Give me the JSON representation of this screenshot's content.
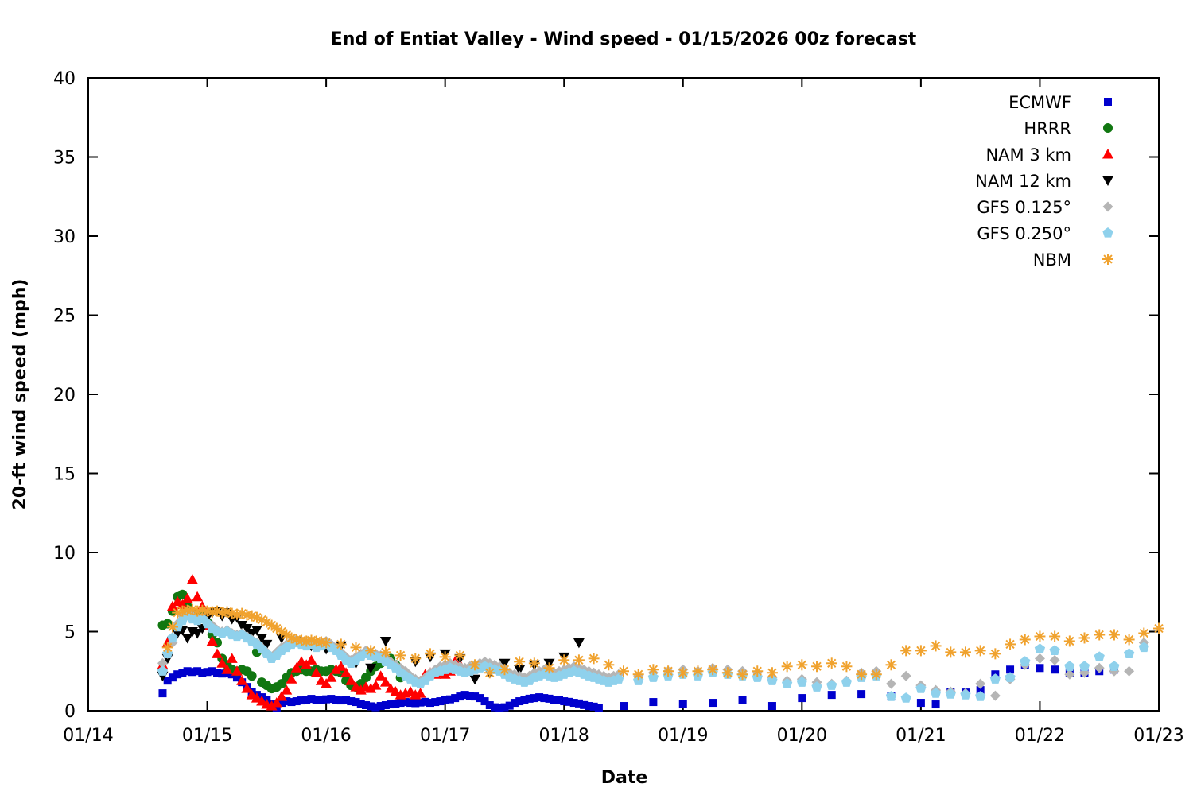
{
  "title": "End of Entiat Valley - Wind speed - 01/15/2026 00z forecast",
  "chart_data": {
    "type": "scatter",
    "title": "End of Entiat Valley - Wind speed - 01/15/2026 00z forecast",
    "xlabel": "Date",
    "ylabel": "20-ft wind speed (mph)",
    "x_tick_labels": [
      "01/14",
      "01/15",
      "01/16",
      "01/17",
      "01/18",
      "01/19",
      "01/20",
      "01/21",
      "01/22",
      "01/23"
    ],
    "x_range_days": [
      0,
      9
    ],
    "x_unit": "days after 01/14 00z",
    "y_ticks": [
      0,
      5,
      10,
      15,
      20,
      25,
      30,
      35,
      40
    ],
    "ylim": [
      0,
      40
    ],
    "grid": false,
    "legend_position": "top-right-inside",
    "background": "#ffffff",
    "series": [
      {
        "label": "ECMWF",
        "marker": "square",
        "color": "#0000cd",
        "runs": [
          {
            "t0": 0.625,
            "dt": 0.04167,
            "v": [
              1.1,
              1.9,
              2.1,
              2.3,
              2.4,
              2.5,
              2.45,
              2.5,
              2.4,
              2.45,
              2.5,
              2.4,
              2.35,
              2.4,
              2.3,
              2.1,
              1.8,
              1.5,
              1.2,
              1.0,
              0.85,
              0.7,
              0.4,
              0.2,
              0.5,
              0.6,
              0.55,
              0.6,
              0.65,
              0.7,
              0.75,
              0.7,
              0.68,
              0.72,
              0.75,
              0.7,
              0.65,
              0.7,
              0.6,
              0.55,
              0.45,
              0.35,
              0.28,
              0.22,
              0.3,
              0.35,
              0.4,
              0.45,
              0.5,
              0.55,
              0.5,
              0.48,
              0.52,
              0.56,
              0.5,
              0.55,
              0.6,
              0.66,
              0.72,
              0.8,
              0.9,
              1.0,
              0.95,
              0.9,
              0.8,
              0.6,
              0.35,
              0.22,
              0.18,
              0.22,
              0.32,
              0.5,
              0.6,
              0.7,
              0.76,
              0.8,
              0.85,
              0.8,
              0.76,
              0.7,
              0.66,
              0.6,
              0.56,
              0.5,
              0.46,
              0.36,
              0.3,
              0.26,
              0.2
            ]
          },
          {
            "t0": 4.5,
            "dt": 0.25,
            "v": [
              0.3,
              0.55,
              0.45,
              0.5,
              0.7,
              0.3,
              0.8,
              1.0,
              1.05,
              0.9,
              0.5
            ]
          },
          {
            "t0": 7.125,
            "dt": 0.125,
            "v": [
              0.4,
              1.2,
              1.15,
              1.3,
              2.3,
              2.6,
              2.9,
              2.7,
              2.6,
              2.4,
              2.4,
              2.5,
              2.6
            ]
          }
        ]
      },
      {
        "label": "HRRR",
        "marker": "circle",
        "color": "#117711",
        "runs": [
          {
            "t0": 0.625,
            "dt": 0.04167,
            "v": [
              5.4,
              5.5,
              6.3,
              7.2,
              7.35,
              6.6,
              6.2,
              5.8,
              6.3,
              5.6,
              4.8,
              4.3,
              3.3,
              2.9,
              2.6,
              2.5,
              2.6,
              2.5,
              2.2,
              3.7,
              1.8,
              1.6,
              1.4,
              1.5,
              1.7,
              2.1,
              2.4,
              2.5,
              2.6,
              2.5,
              2.5,
              2.6,
              2.5,
              2.5,
              2.6,
              2.5,
              2.4,
              1.9,
              1.6,
              1.5,
              1.7,
              2.1,
              2.5,
              2.8,
              3.0,
              3.2,
              3.3,
              2.9,
              2.1
            ]
          }
        ]
      },
      {
        "label": "NAM 3 km",
        "marker": "triangle-up",
        "color": "#ff0000",
        "runs": [
          {
            "t0": 0.625,
            "dt": 0.04167,
            "v": [
              2.9,
              4.3,
              6.6,
              6.9,
              6.7,
              7.1,
              8.3,
              7.2,
              6.6,
              5.4,
              4.4,
              3.6,
              3.0,
              2.6,
              3.3,
              2.5,
              1.9,
              1.4,
              1.0,
              0.8,
              0.6,
              0.4,
              0.3,
              0.5,
              0.9,
              1.3,
              2.0,
              2.7,
              3.1,
              2.9,
              3.2,
              2.4,
              1.9,
              1.7,
              2.1,
              2.6,
              2.8,
              2.4,
              1.9,
              1.5,
              1.3,
              1.5,
              1.4,
              1.6,
              2.2,
              1.8,
              1.4,
              1.2,
              1.0,
              1.1,
              1.2,
              1.0,
              1.1,
              2.3,
              2.4,
              2.3,
              2.4,
              2.3,
              2.5,
              3.1,
              2.9
            ]
          }
        ]
      },
      {
        "label": "NAM 12 km",
        "marker": "triangle-down",
        "color": "#000000",
        "runs": [
          {
            "t0": 0.625,
            "dt": 0.04167,
            "v": [
              2.2,
              3.3,
              4.4,
              4.9,
              5.1,
              4.6,
              5.0,
              4.9,
              5.2,
              5.9,
              6.2,
              6.3,
              6.0,
              6.2,
              5.8,
              5.9,
              5.4,
              5.2,
              4.9,
              5.1,
              4.6,
              4.2
            ]
          },
          {
            "t0": 1.625,
            "dt": 0.125,
            "v": [
              4.6,
              4.4,
              4.1,
              3.9,
              4.1,
              3.0,
              2.7,
              4.4,
              2.5,
              3.1,
              3.4,
              3.6,
              3.3,
              2.0,
              2.4,
              3.0,
              2.6,
              2.9,
              3.0,
              3.4,
              4.3
            ]
          }
        ]
      },
      {
        "label": "GFS 0.125°",
        "marker": "diamond",
        "color": "#b5b5b5",
        "runs": [
          {
            "t0": 0.625,
            "dt": 0.04167,
            "v": [
              3.0,
              3.6,
              4.3,
              5.5,
              6.0,
              6.2,
              6.0,
              5.8,
              5.9,
              5.6,
              5.4,
              5.1,
              5.0,
              5.1,
              4.9,
              4.8,
              4.9,
              4.7,
              4.5,
              4.3,
              4.0,
              3.7,
              3.4,
              3.7,
              4.0,
              4.2,
              4.4,
              4.5,
              4.4,
              4.3,
              4.4,
              4.2,
              4.3,
              4.4,
              4.2,
              4.0,
              3.7,
              3.4,
              3.2,
              3.4,
              3.6,
              3.8,
              3.7,
              3.6,
              3.5,
              3.3,
              3.1,
              2.9,
              2.7,
              2.5,
              2.2,
              2.0,
              1.9,
              2.1,
              2.4,
              2.6,
              2.8,
              2.9,
              3.0,
              2.9,
              2.8,
              2.7,
              2.8,
              2.9,
              3.0,
              3.1,
              3.0,
              2.9,
              2.8,
              2.6,
              2.4,
              2.3,
              2.2,
              2.1,
              2.2,
              2.4,
              2.5,
              2.6,
              2.5,
              2.4,
              2.5,
              2.6,
              2.7,
              2.8,
              2.7,
              2.6,
              2.5,
              2.4,
              2.3,
              2.2,
              2.1,
              2.2,
              2.3
            ]
          },
          {
            "t0": 4.625,
            "dt": 0.125,
            "v": [
              2.2,
              2.4,
              2.5,
              2.6,
              2.5,
              2.7,
              2.6,
              2.5,
              2.4,
              2.1,
              1.9,
              2.0,
              1.8,
              1.7,
              1.9,
              2.4,
              2.5,
              1.7,
              2.2,
              1.6,
              1.3,
              1.2,
              1.1,
              1.7,
              0.95,
              2.0,
              2.9,
              3.3,
              3.2,
              2.3,
              2.4,
              2.7,
              2.5,
              2.5,
              4.3
            ]
          }
        ]
      },
      {
        "label": "GFS 0.250°",
        "marker": "pentagon",
        "color": "#8fd1ec",
        "runs": [
          {
            "t0": 0.625,
            "dt": 0.04167,
            "v": [
              2.5,
              3.6,
              4.6,
              5.3,
              5.7,
              6.0,
              5.8,
              5.7,
              5.8,
              5.5,
              5.2,
              5.0,
              4.9,
              5.0,
              4.8,
              4.7,
              4.8,
              4.6,
              4.4,
              4.2,
              3.9,
              3.6,
              3.3,
              3.5,
              3.8,
              4.0,
              4.2,
              4.3,
              4.2,
              4.1,
              4.2,
              4.0,
              4.1,
              4.2,
              4.0,
              3.8,
              3.5,
              3.2,
              3.0,
              3.2,
              3.4,
              3.6,
              3.5,
              3.4,
              3.3,
              3.1,
              2.9,
              2.7,
              2.4,
              2.2,
              2.0,
              1.8,
              1.7,
              1.9,
              2.2,
              2.4,
              2.5,
              2.6,
              2.7,
              2.6,
              2.5,
              2.4,
              2.5,
              2.6,
              2.7,
              2.8,
              2.7,
              2.6,
              2.5,
              2.3,
              2.1,
              2.0,
              1.9,
              1.8,
              1.9,
              2.1,
              2.2,
              2.3,
              2.2,
              2.1,
              2.2,
              2.3,
              2.4,
              2.5,
              2.4,
              2.3,
              2.2,
              2.1,
              2.0,
              1.9,
              1.8,
              1.9,
              2.0
            ]
          },
          {
            "t0": 4.625,
            "dt": 0.125,
            "v": [
              1.9,
              2.1,
              2.2,
              2.3,
              2.2,
              2.4,
              2.3,
              2.2,
              2.1,
              1.9,
              1.7,
              1.8,
              1.5,
              1.6,
              1.8,
              2.1,
              2.2,
              0.9,
              0.8,
              1.4,
              1.1,
              1.05,
              1.0,
              0.9,
              2.0,
              2.1,
              3.1,
              3.9,
              3.8,
              2.8,
              2.8,
              3.4,
              2.8,
              3.6,
              4.0
            ]
          }
        ]
      },
      {
        "label": "NBM",
        "marker": "asterisk",
        "color": "#f0a22e",
        "runs": [
          {
            "t0": 0.667,
            "dt": 0.04167,
            "v": [
              4.0,
              5.3,
              6.2,
              6.3,
              6.35,
              6.4,
              6.3,
              6.35,
              6.3,
              6.25,
              6.3,
              6.2,
              6.25,
              6.15,
              6.1,
              6.15,
              6.05,
              6.0,
              5.9,
              5.75,
              5.6,
              5.4,
              5.2,
              5.0,
              4.8,
              4.6,
              4.5,
              4.45,
              4.4,
              4.45,
              4.4,
              4.35,
              4.3
            ]
          },
          {
            "t0": 2.125,
            "dt": 0.125,
            "v": [
              4.2,
              4.0,
              3.8,
              3.7,
              3.5,
              3.3,
              3.6,
              3.4,
              3.5,
              2.9,
              2.4,
              2.6,
              3.1,
              3.0,
              2.7,
              3.2,
              3.2,
              3.3,
              2.9,
              2.5,
              2.3,
              2.6,
              2.5,
              2.4,
              2.5,
              2.6,
              2.4,
              2.3,
              2.5,
              2.4,
              2.8,
              2.9,
              2.8,
              3.0,
              2.8,
              2.3,
              2.3,
              2.9,
              3.8,
              3.8,
              4.1,
              3.7,
              3.7,
              3.8,
              3.6,
              4.2,
              4.5,
              4.7,
              4.7,
              4.4,
              4.6,
              4.8,
              4.8,
              4.5,
              4.9,
              5.2
            ]
          }
        ]
      }
    ]
  }
}
